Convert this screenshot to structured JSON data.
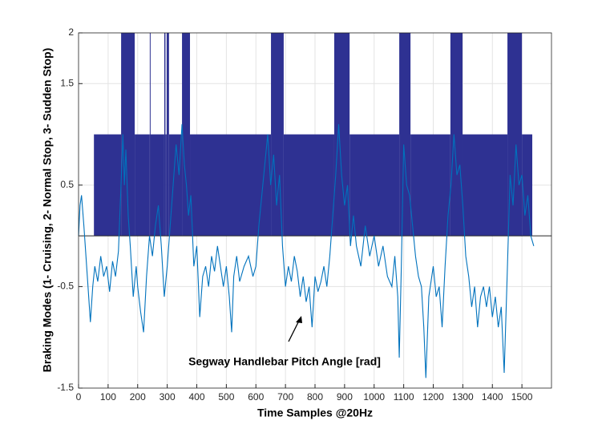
{
  "chart_data": {
    "type": "stem-line",
    "xlabel": "Time Samples @20Hz",
    "ylabel": "Braking Modes (1- Cruising, 2- Normal Stop, 3- Sudden Stop)",
    "annotation": "Segway Handlebar Pitch Angle [rad]",
    "xlim": [
      0,
      1600
    ],
    "ylim": [
      -1.5,
      2
    ],
    "xticks": [
      0,
      100,
      200,
      300,
      400,
      500,
      600,
      700,
      800,
      900,
      1000,
      1100,
      1200,
      1300,
      1400,
      1500
    ],
    "yticks": [
      -1.5,
      -0.5,
      0.5,
      1.5,
      2
    ],
    "grid": true,
    "mode_segments": {
      "color": "#2e3192",
      "x": [
        0,
        52,
        144,
        190,
        241,
        243,
        290,
        294,
        298,
        306,
        350,
        377,
        651,
        694,
        865,
        917,
        1085,
        1123,
        1258,
        1299,
        1451,
        1500,
        1535
      ],
      "levels": [
        0,
        1,
        2,
        1,
        2,
        1,
        2,
        1,
        2,
        1,
        2,
        1,
        2,
        1,
        2,
        1,
        2,
        1,
        2,
        1,
        2,
        1
      ]
    },
    "pitch": {
      "color": "#0072bd",
      "x": [
        0,
        5,
        10,
        18,
        25,
        32,
        40,
        48,
        55,
        65,
        75,
        85,
        95,
        105,
        115,
        125,
        135,
        145,
        150,
        155,
        160,
        168,
        175,
        185,
        195,
        200,
        210,
        220,
        230,
        240,
        250,
        260,
        270,
        280,
        290,
        300,
        310,
        320,
        330,
        340,
        350,
        358,
        365,
        372,
        380,
        390,
        400,
        410,
        420,
        430,
        440,
        450,
        460,
        470,
        480,
        490,
        500,
        510,
        518,
        525,
        535,
        545,
        560,
        575,
        590,
        600,
        610,
        620,
        630,
        640,
        650,
        660,
        670,
        680,
        690,
        700,
        710,
        720,
        730,
        740,
        750,
        760,
        770,
        780,
        790,
        800,
        810,
        820,
        830,
        840,
        850,
        860,
        870,
        880,
        890,
        900,
        910,
        920,
        930,
        940,
        955,
        970,
        985,
        1000,
        1015,
        1030,
        1045,
        1060,
        1070,
        1080,
        1085,
        1092,
        1100,
        1110,
        1120,
        1130,
        1140,
        1150,
        1160,
        1168,
        1175,
        1185,
        1200,
        1210,
        1220,
        1230,
        1240,
        1250,
        1260,
        1270,
        1280,
        1290,
        1300,
        1310,
        1320,
        1330,
        1340,
        1350,
        1360,
        1370,
        1380,
        1390,
        1400,
        1410,
        1420,
        1430,
        1440,
        1450,
        1460,
        1470,
        1480,
        1490,
        1500,
        1510,
        1520,
        1530,
        1540
      ],
      "values": [
        0.0,
        0.3,
        0.4,
        0.1,
        -0.2,
        -0.5,
        -0.85,
        -0.5,
        -0.3,
        -0.45,
        -0.2,
        -0.4,
        -0.3,
        -0.55,
        -0.25,
        -0.4,
        -0.15,
        0.6,
        1.0,
        0.5,
        0.85,
        0.2,
        -0.1,
        -0.6,
        -0.3,
        -0.5,
        -0.75,
        -0.95,
        -0.4,
        0.0,
        -0.2,
        0.1,
        0.3,
        -0.1,
        -0.6,
        -0.3,
        0.1,
        0.5,
        0.9,
        0.6,
        1.1,
        0.7,
        0.5,
        0.2,
        0.4,
        -0.3,
        -0.1,
        -0.8,
        -0.4,
        -0.3,
        -0.5,
        -0.2,
        -0.35,
        -0.1,
        -0.3,
        -0.5,
        -0.3,
        -0.6,
        -0.95,
        -0.4,
        -0.2,
        -0.45,
        -0.3,
        -0.2,
        -0.4,
        -0.3,
        0.1,
        0.4,
        0.7,
        1.0,
        0.5,
        0.8,
        0.3,
        0.6,
        -0.1,
        -0.5,
        -0.3,
        -0.45,
        -0.2,
        -0.35,
        -0.6,
        -0.4,
        -0.65,
        -0.5,
        -0.9,
        -0.4,
        -0.55,
        -0.45,
        -0.3,
        -0.5,
        -0.2,
        0.2,
        0.6,
        1.1,
        0.6,
        0.3,
        0.5,
        -0.1,
        0.2,
        -0.1,
        -0.3,
        0.1,
        -0.2,
        0.0,
        -0.3,
        -0.1,
        -0.4,
        -0.5,
        -0.2,
        -0.6,
        -1.2,
        -0.3,
        0.9,
        0.5,
        0.4,
        0.1,
        -0.2,
        -0.4,
        -0.5,
        -0.9,
        -1.4,
        -0.6,
        -0.3,
        -0.6,
        -0.5,
        -0.9,
        -0.3,
        0.2,
        0.5,
        1.0,
        0.6,
        0.7,
        0.3,
        -0.2,
        -0.4,
        -0.7,
        -0.5,
        -0.9,
        -0.6,
        -0.5,
        -0.7,
        -0.5,
        -0.8,
        -0.6,
        -0.9,
        -0.7,
        -1.35,
        -0.4,
        0.6,
        0.3,
        0.9,
        0.5,
        0.6,
        0.2,
        0.4,
        0.0,
        -0.1
      ]
    }
  }
}
